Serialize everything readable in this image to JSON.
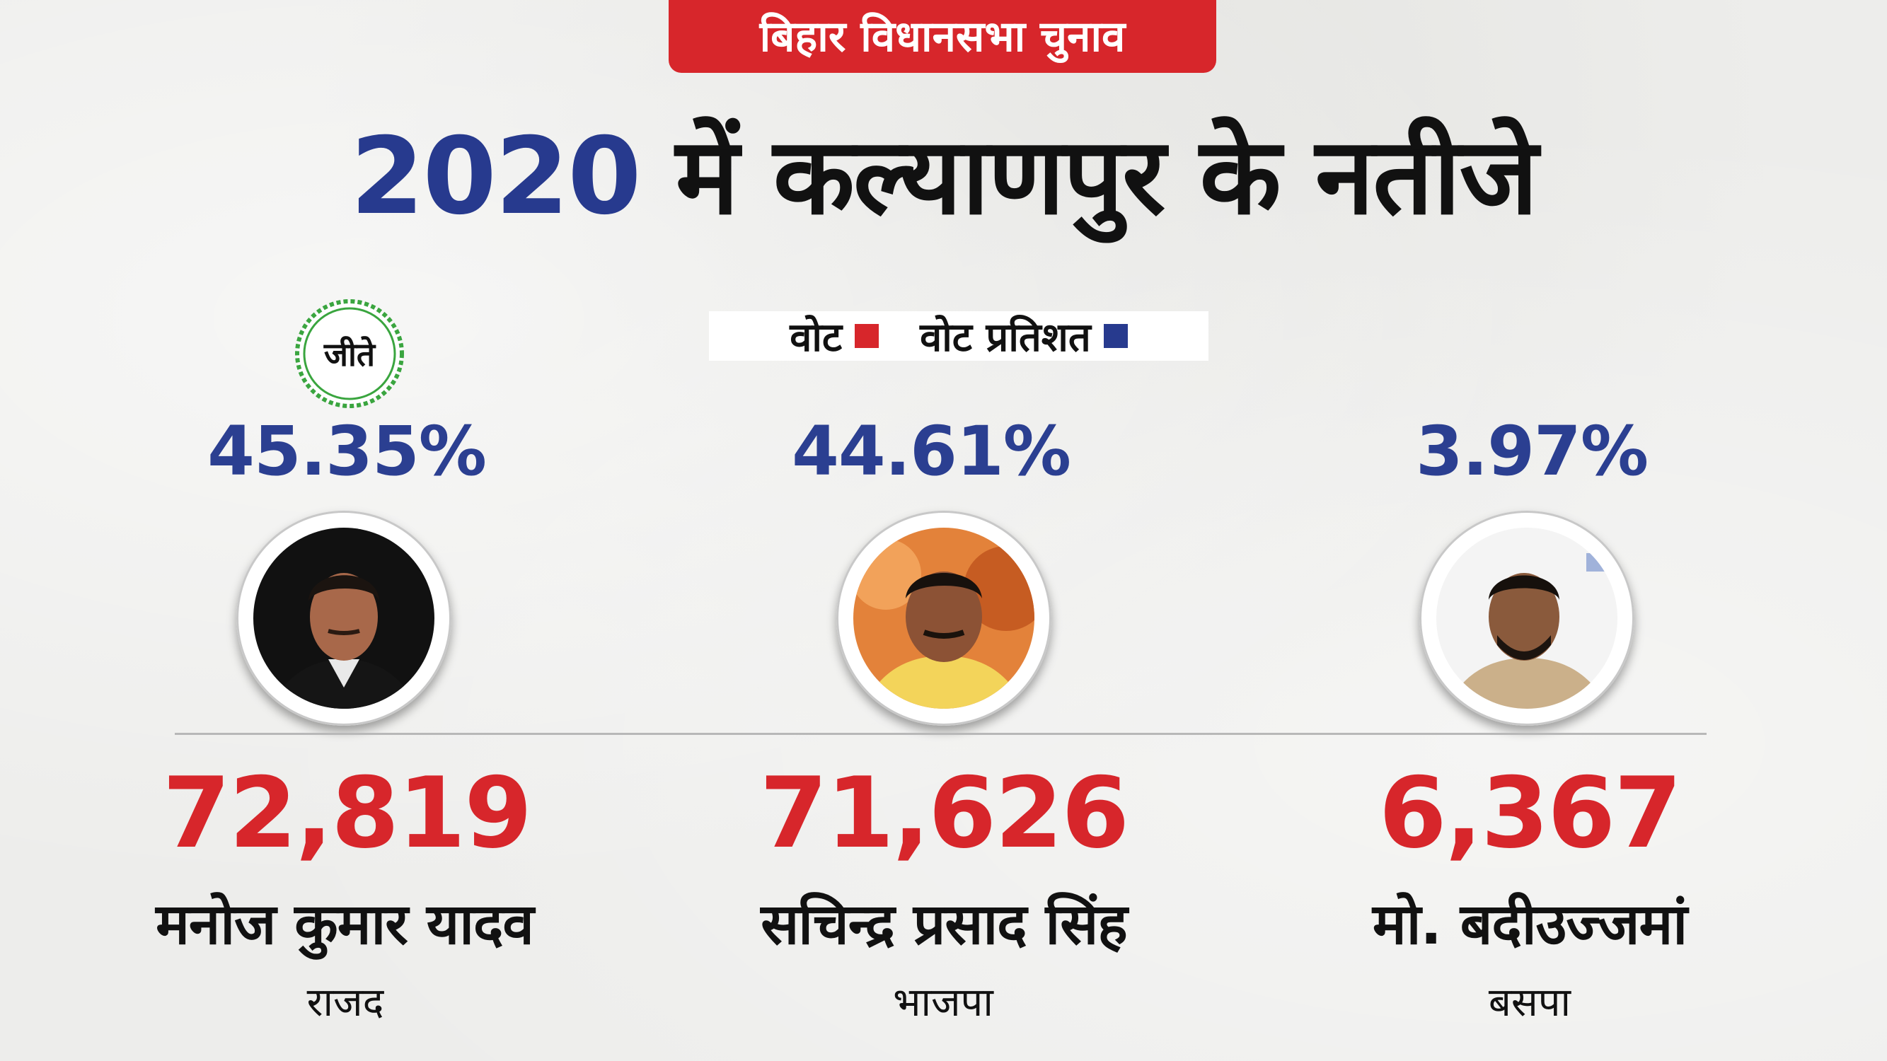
{
  "tag": "बिहार विधानसभा चुनाव",
  "headline": {
    "year": "2020",
    "rest": "में कल्याणपुर के नतीजे"
  },
  "legend": {
    "votes_label": "वोट",
    "votes_color": "#d7262b",
    "percent_label": "वोट प्रतिशत",
    "percent_color": "#273a8e"
  },
  "winner_badge": "जीते",
  "candidates": [
    {
      "percent": "45.35%",
      "votes": "72,819",
      "name": "मनोज कुमार यादव",
      "party": "राजद",
      "winner": true
    },
    {
      "percent": "44.61%",
      "votes": "71,626",
      "name": "सचिन्द्र प्रसाद सिंह",
      "party": "भाजपा",
      "winner": false
    },
    {
      "percent": "3.97%",
      "votes": "6,367",
      "name": "मो. बदीउज्जमां",
      "party": "बसपा",
      "winner": false
    }
  ]
}
